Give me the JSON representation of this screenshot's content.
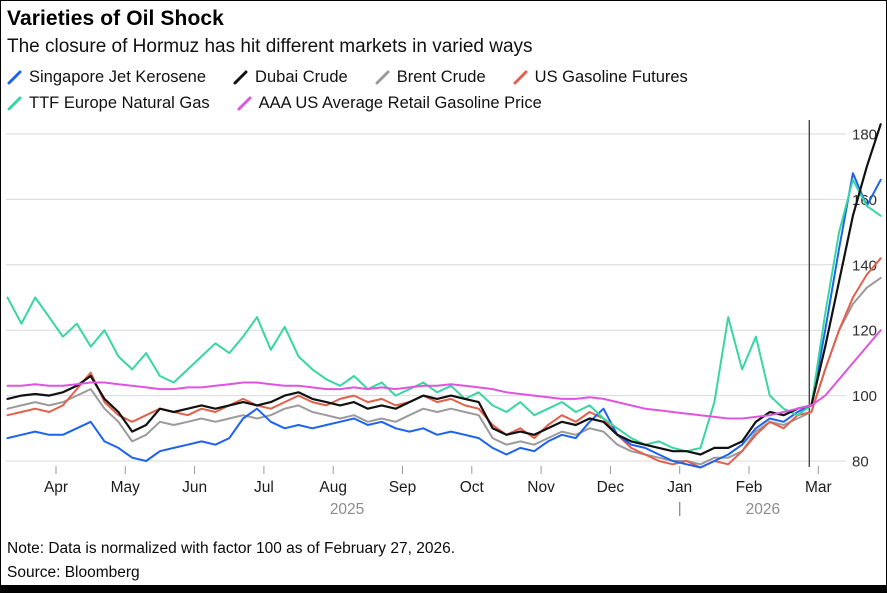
{
  "header": {
    "title": "Varieties of Oil Shock",
    "subtitle": "The closure of Hormuz has hit different markets in varied ways"
  },
  "footer": {
    "note": "Note: Data is normalized with factor 100 as of February 27, 2026.",
    "source": "Source: Bloomberg"
  },
  "chart_data": {
    "type": "line",
    "title": "Varieties of Oil Shock",
    "subtitle": "The closure of Hormuz has hit different markets in varied ways",
    "note": "Data is normalized with factor 100 as of February 27, 2026.",
    "x_unit": "months since 2025-04-01",
    "xlim": [
      -0.74,
      11.95
    ],
    "ylim": [
      74,
      186
    ],
    "grid": "horizontal",
    "legend_position": "top",
    "y_ticks": [
      80,
      100,
      120,
      140,
      160,
      180
    ],
    "x_tick_labels": [
      "Apr",
      "May",
      "Jun",
      "Jul",
      "Aug",
      "Sep",
      "Oct",
      "Nov",
      "Dec",
      "Jan",
      "Feb",
      "Mar"
    ],
    "x_tick_months": [
      0,
      1,
      2,
      3,
      4,
      5,
      6,
      7,
      8,
      9,
      10,
      11
    ],
    "year_labels": [
      {
        "label": "2025",
        "x": 4.2
      },
      {
        "label": "2026",
        "x": 10.2
      }
    ],
    "year_divider_x": 9,
    "event_line_x": 10.87,
    "x": [
      -0.7,
      -0.5,
      -0.3,
      -0.1,
      0.1,
      0.3,
      0.5,
      0.7,
      0.9,
      1.1,
      1.3,
      1.5,
      1.7,
      1.9,
      2.1,
      2.3,
      2.5,
      2.7,
      2.9,
      3.1,
      3.3,
      3.5,
      3.7,
      3.9,
      4.1,
      4.3,
      4.5,
      4.7,
      4.9,
      5.1,
      5.3,
      5.5,
      5.7,
      5.9,
      6.1,
      6.3,
      6.5,
      6.7,
      6.9,
      7.1,
      7.3,
      7.5,
      7.7,
      7.9,
      8.1,
      8.3,
      8.5,
      8.7,
      8.9,
      9.1,
      9.3,
      9.5,
      9.7,
      9.9,
      10.1,
      10.3,
      10.5,
      10.7,
      10.9,
      11.1,
      11.3,
      11.5,
      11.7,
      11.9
    ],
    "series": [
      {
        "name": "Singapore Jet Kerosene",
        "color": "#1d63f0",
        "values": [
          87,
          88,
          89,
          88,
          88,
          90,
          92,
          86,
          84,
          81,
          80,
          83,
          84,
          85,
          86,
          85,
          87,
          93,
          96,
          92,
          90,
          91,
          90,
          91,
          92,
          93,
          91,
          92,
          90,
          89,
          90,
          88,
          89,
          88,
          87,
          84,
          82,
          84,
          83,
          86,
          88,
          87,
          92,
          96,
          88,
          85,
          84,
          82,
          80,
          79,
          78,
          80,
          82,
          85,
          90,
          93,
          92,
          95,
          97,
          120,
          145,
          168,
          158,
          166
        ]
      },
      {
        "name": "Dubai Crude",
        "color": "#111111",
        "values": [
          99,
          100,
          100.5,
          100,
          101,
          103,
          106,
          99,
          95,
          89,
          91,
          96,
          95,
          96,
          97,
          96,
          97,
          98,
          97,
          98,
          100,
          101,
          99,
          98,
          97,
          98,
          96,
          97,
          96,
          98,
          100,
          99,
          100,
          99,
          98,
          90,
          88,
          89,
          88,
          90,
          92,
          91,
          93,
          92,
          88,
          86,
          85,
          84,
          83,
          83,
          82,
          84,
          84,
          86,
          92,
          95,
          94,
          96,
          97,
          115,
          135,
          155,
          170,
          183
        ]
      },
      {
        "name": "Brent Crude",
        "color": "#9b9b9b",
        "values": [
          96,
          97,
          98,
          97,
          98,
          100,
          102,
          96,
          92,
          86,
          88,
          92,
          91,
          92,
          93,
          92,
          93,
          94,
          93,
          94,
          96,
          97,
          95,
          94,
          93,
          94,
          92,
          93,
          92,
          94,
          96,
          95,
          96,
          95,
          94,
          87,
          85,
          86,
          85,
          87,
          89,
          88,
          90,
          89,
          85,
          83,
          82,
          81,
          80,
          80,
          79,
          81,
          81,
          83,
          89,
          92,
          91,
          93,
          95,
          108,
          120,
          128,
          133,
          136
        ]
      },
      {
        "name": "US Gasoline Futures",
        "color": "#e2604c",
        "values": [
          94,
          95,
          96,
          95,
          97,
          102,
          107,
          98,
          94,
          92,
          94,
          96,
          95,
          94,
          96,
          95,
          97,
          99,
          97,
          96,
          98,
          100,
          98,
          97,
          99,
          100,
          98,
          99,
          97,
          98,
          100,
          98,
          99,
          97,
          96,
          91,
          88,
          90,
          87,
          91,
          94,
          92,
          95,
          93,
          88,
          84,
          82,
          80,
          79,
          80,
          78,
          80,
          79,
          83,
          88,
          92,
          90,
          94,
          95,
          108,
          120,
          130,
          137,
          142
        ]
      },
      {
        "name": "TTF Europe Natural Gas",
        "color": "#38d6a2",
        "values": [
          130,
          122,
          130,
          124,
          118,
          122,
          115,
          120,
          112,
          108,
          113,
          106,
          104,
          108,
          112,
          116,
          113,
          118,
          124,
          114,
          121,
          112,
          108,
          105,
          103,
          106,
          102,
          104,
          100,
          102,
          104,
          101,
          103,
          99,
          101,
          97,
          95,
          98,
          94,
          96,
          98,
          95,
          97,
          93,
          90,
          87,
          85,
          86,
          84,
          83,
          84,
          98,
          124,
          108,
          118,
          100,
          96,
          94,
          97,
          125,
          150,
          166,
          158,
          155
        ]
      },
      {
        "name": "AAA US Average Retail Gasoline Price",
        "color": "#e055e0",
        "values": [
          103,
          103,
          103.5,
          103,
          103,
          103.5,
          104,
          104,
          103.5,
          103,
          102.5,
          102,
          102,
          102.5,
          102.5,
          103,
          103.5,
          104,
          104,
          103.5,
          103,
          103,
          102.5,
          102,
          102,
          102.5,
          102,
          102.5,
          102,
          102.5,
          103,
          103,
          103.5,
          103,
          102.5,
          102,
          101,
          100.5,
          100,
          99.5,
          99,
          99,
          99.5,
          99,
          98,
          97,
          96,
          95.5,
          95,
          94.5,
          94,
          93.5,
          93,
          93,
          93.5,
          94,
          95,
          96,
          97,
          100,
          105,
          110,
          115,
          120
        ]
      }
    ],
    "legend_rows": [
      [
        0,
        1,
        2,
        3
      ],
      [
        4,
        5
      ]
    ],
    "draw_order": [
      2,
      3,
      0,
      4,
      1,
      5
    ]
  }
}
